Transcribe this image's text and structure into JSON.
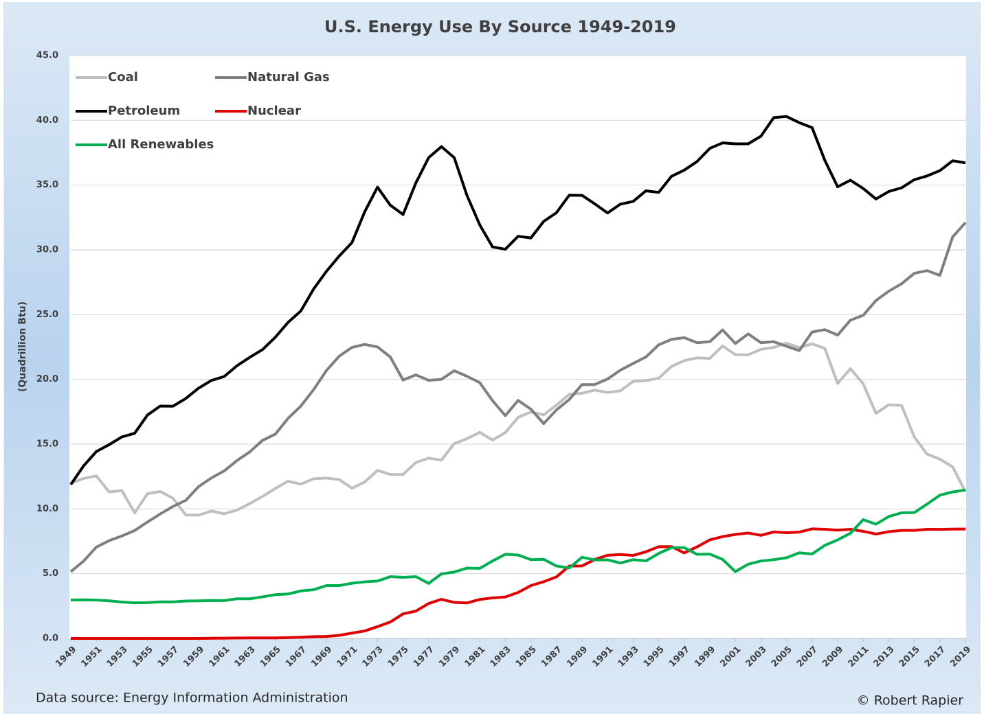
{
  "chart_data": {
    "type": "line",
    "title": "U.S. Energy Use By Source 1949-2019",
    "y_label": "(Quadrillion Btu)",
    "source": "Data source: Energy Information Administration",
    "credit": "© Robert Rapier",
    "legend": "upper left",
    "grid": true,
    "xlim": [
      1949,
      2019
    ],
    "xticks": [
      1949,
      1951,
      1953,
      1955,
      1957,
      1959,
      1961,
      1963,
      1965,
      1967,
      1969,
      1971,
      1973,
      1975,
      1977,
      1979,
      1981,
      1983,
      1985,
      1987,
      1989,
      1991,
      1993,
      1995,
      1997,
      1999,
      2001,
      2003,
      2005,
      2007,
      2009,
      2011,
      2013,
      2015,
      2017,
      2019
    ],
    "ylim": [
      0,
      45
    ],
    "yticks": [
      {
        "value": 0,
        "label": "0.0"
      },
      {
        "value": 5,
        "label": "5.0"
      },
      {
        "value": 10,
        "label": "10.0"
      },
      {
        "value": 15,
        "label": "15.0"
      },
      {
        "value": 20,
        "label": "20.0"
      },
      {
        "value": 25,
        "label": "25.0"
      },
      {
        "value": 30,
        "label": "30.0"
      },
      {
        "value": 35,
        "label": "35.0"
      },
      {
        "value": 40,
        "label": "40.0"
      },
      {
        "value": 45,
        "label": "45.0"
      }
    ],
    "x": [
      1949,
      1950,
      1951,
      1952,
      1953,
      1954,
      1955,
      1956,
      1957,
      1958,
      1959,
      1960,
      1961,
      1962,
      1963,
      1964,
      1965,
      1966,
      1967,
      1968,
      1969,
      1970,
      1971,
      1972,
      1973,
      1974,
      1975,
      1976,
      1977,
      1978,
      1979,
      1980,
      1981,
      1982,
      1983,
      1984,
      1985,
      1986,
      1987,
      1988,
      1989,
      1990,
      1991,
      1992,
      1993,
      1994,
      1995,
      1996,
      1997,
      1998,
      1999,
      2000,
      2001,
      2002,
      2003,
      2004,
      2005,
      2006,
      2007,
      2008,
      2009,
      2010,
      2011,
      2012,
      2013,
      2014,
      2015,
      2016,
      2017,
      2018,
      2019
    ],
    "series": [
      {
        "name": "Coal",
        "color": "#bfbfbf",
        "values": [
          11.98,
          12.35,
          12.55,
          11.31,
          11.41,
          9.7,
          11.17,
          11.35,
          10.82,
          9.53,
          9.52,
          9.84,
          9.62,
          9.91,
          10.41,
          10.96,
          11.58,
          12.14,
          11.91,
          12.33,
          12.38,
          12.27,
          11.6,
          12.08,
          12.97,
          12.66,
          12.66,
          13.58,
          13.92,
          13.77,
          15.04,
          15.42,
          15.91,
          15.32,
          15.89,
          17.07,
          17.48,
          17.26,
          18.01,
          18.85,
          18.93,
          19.17,
          18.99,
          19.12,
          19.84,
          19.91,
          20.09,
          21.0,
          21.45,
          21.66,
          21.62,
          22.58,
          21.91,
          21.9,
          22.32,
          22.47,
          22.8,
          22.45,
          22.75,
          22.39,
          19.69,
          20.83,
          19.66,
          17.38,
          18.04,
          17.99,
          15.55,
          14.23,
          13.84,
          13.25,
          11.32
        ]
      },
      {
        "name": "Natural Gas",
        "color": "#7f7f7f",
        "values": [
          5.15,
          5.97,
          7.05,
          7.55,
          7.91,
          8.33,
          8.99,
          9.61,
          10.19,
          10.66,
          11.72,
          12.39,
          12.93,
          13.73,
          14.4,
          15.29,
          15.77,
          16.99,
          17.94,
          19.21,
          20.68,
          21.79,
          22.47,
          22.7,
          22.51,
          21.73,
          19.95,
          20.35,
          19.93,
          20.0,
          20.67,
          20.24,
          19.75,
          18.36,
          17.2,
          18.38,
          17.7,
          16.59,
          17.64,
          18.45,
          19.6,
          19.6,
          20.03,
          20.71,
          21.23,
          21.73,
          22.67,
          23.09,
          23.22,
          22.83,
          22.91,
          23.82,
          22.77,
          23.51,
          22.83,
          22.91,
          22.56,
          22.22,
          23.66,
          23.84,
          23.42,
          24.57,
          24.95,
          26.09,
          26.81,
          27.38,
          28.19,
          28.4,
          28.03,
          31.0,
          32.1
        ]
      },
      {
        "name": "Petroleum",
        "color": "#000000",
        "values": [
          11.88,
          13.32,
          14.43,
          14.96,
          15.56,
          15.84,
          17.25,
          17.94,
          17.93,
          18.53,
          19.32,
          19.92,
          20.22,
          21.05,
          21.7,
          22.3,
          23.25,
          24.4,
          25.28,
          26.98,
          28.34,
          29.52,
          30.56,
          32.95,
          34.84,
          33.45,
          32.73,
          35.17,
          37.12,
          37.97,
          37.12,
          34.2,
          31.93,
          30.23,
          30.05,
          31.05,
          30.92,
          32.2,
          32.87,
          34.22,
          34.21,
          33.55,
          32.85,
          33.53,
          33.74,
          34.56,
          34.44,
          35.68,
          36.16,
          36.82,
          37.84,
          38.26,
          38.19,
          38.19,
          38.78,
          40.21,
          40.3,
          39.82,
          39.44,
          36.91,
          34.87,
          35.38,
          34.74,
          33.93,
          34.51,
          34.79,
          35.42,
          35.71,
          36.12,
          36.88,
          36.72
        ]
      },
      {
        "name": "Nuclear",
        "color": "#e00000",
        "values": [
          0,
          0,
          0,
          0,
          0,
          0,
          0,
          0,
          0,
          0,
          0,
          0.01,
          0.02,
          0.03,
          0.04,
          0.04,
          0.04,
          0.06,
          0.09,
          0.14,
          0.15,
          0.24,
          0.41,
          0.58,
          0.91,
          1.27,
          1.9,
          2.11,
          2.7,
          3.02,
          2.78,
          2.74,
          3.01,
          3.13,
          3.2,
          3.55,
          4.08,
          4.38,
          4.75,
          5.59,
          5.6,
          6.1,
          6.42,
          6.48,
          6.41,
          6.69,
          7.08,
          7.09,
          6.6,
          7.07,
          7.61,
          7.86,
          8.03,
          8.14,
          7.96,
          8.22,
          8.16,
          8.21,
          8.46,
          8.43,
          8.36,
          8.43,
          8.27,
          8.06,
          8.24,
          8.34,
          8.34,
          8.43,
          8.42,
          8.44,
          8.45
        ]
      },
      {
        "name": "All Renewables",
        "color": "#00b050",
        "values": [
          2.97,
          2.98,
          2.96,
          2.9,
          2.81,
          2.75,
          2.76,
          2.82,
          2.82,
          2.89,
          2.9,
          2.93,
          2.92,
          3.06,
          3.06,
          3.21,
          3.38,
          3.43,
          3.67,
          3.76,
          4.08,
          4.08,
          4.26,
          4.37,
          4.43,
          4.77,
          4.72,
          4.77,
          4.25,
          4.98,
          5.13,
          5.43,
          5.41,
          5.98,
          6.5,
          6.44,
          6.08,
          6.11,
          5.59,
          5.44,
          6.27,
          6.06,
          6.07,
          5.82,
          6.08,
          5.99,
          6.56,
          7.01,
          7.01,
          6.49,
          6.51,
          6.1,
          5.16,
          5.73,
          5.98,
          6.08,
          6.23,
          6.61,
          6.52,
          7.19,
          7.61,
          8.12,
          9.17,
          8.82,
          9.41,
          9.7,
          9.72,
          10.37,
          11.06,
          11.31,
          11.46
        ]
      }
    ]
  }
}
